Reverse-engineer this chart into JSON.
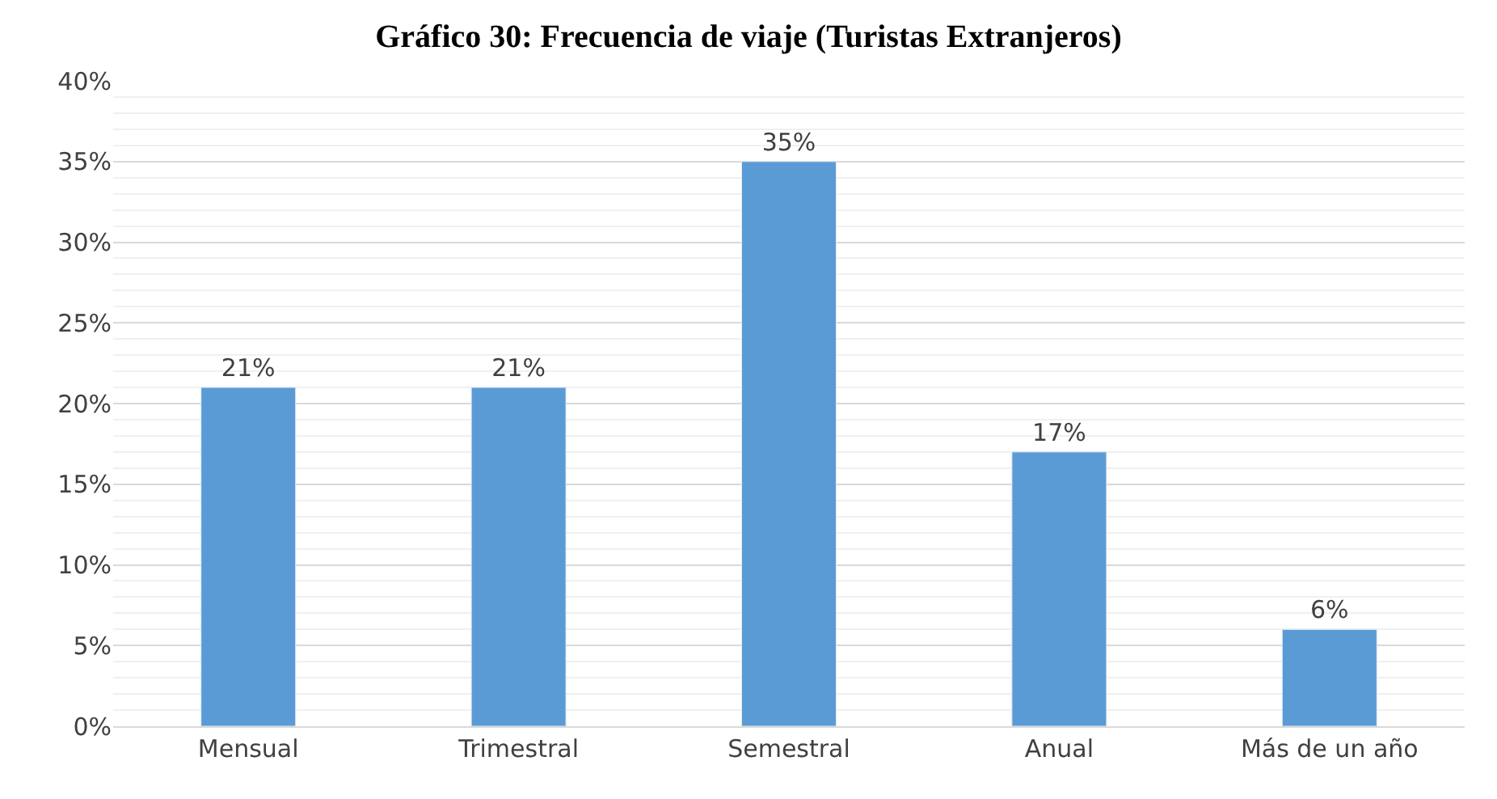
{
  "chart_data": {
    "type": "bar",
    "title": "Gráfico 30: Frecuencia de viaje (Turistas Extranjeros)",
    "categories": [
      "Mensual",
      "Trimestral",
      "Semestral",
      "Anual",
      "Más de un año"
    ],
    "values": [
      21,
      21,
      35,
      17,
      6
    ],
    "value_labels": [
      "21%",
      "21%",
      "35%",
      "17%",
      "6%"
    ],
    "color": "#5b9bd5",
    "ylim": [
      0,
      40
    ],
    "yticks": [
      {
        "value": 0,
        "label": "0%"
      },
      {
        "value": 5,
        "label": "5%"
      },
      {
        "value": 10,
        "label": "10%"
      },
      {
        "value": 15,
        "label": "15%"
      },
      {
        "value": 20,
        "label": "20%"
      },
      {
        "value": 25,
        "label": "25%"
      },
      {
        "value": 30,
        "label": "30%"
      },
      {
        "value": 35,
        "label": "35%"
      },
      {
        "value": 40,
        "label": "40%"
      }
    ],
    "grid": "y"
  }
}
